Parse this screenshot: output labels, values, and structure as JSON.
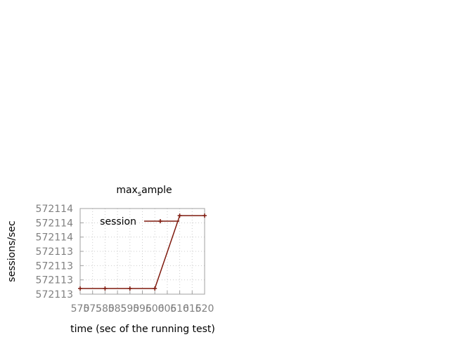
{
  "chart_data": {
    "type": "line",
    "title_main": "max",
    "title_sub": "s",
    "title_rest": "ample",
    "xlabel": "time (sec of the running test)",
    "ylabel": "sessions/sec",
    "x_ticks": [
      "570",
      "575",
      "580",
      "585",
      "590",
      "595",
      "600",
      "605",
      "610",
      "615",
      "620"
    ],
    "y_ticks": [
      "572113",
      "572113",
      "572113",
      "572113",
      "572114",
      "572114",
      "572114"
    ],
    "xlim": [
      570,
      620
    ],
    "ylim": [
      0,
      6
    ],
    "grid": true,
    "legend_position": "top-left",
    "series": [
      {
        "name": "session",
        "color": "#7f1a0e",
        "x": [
          570,
          580,
          590,
          600,
          610,
          620
        ],
        "y": [
          0.4,
          0.4,
          0.4,
          0.4,
          5.5,
          5.5
        ]
      }
    ]
  }
}
